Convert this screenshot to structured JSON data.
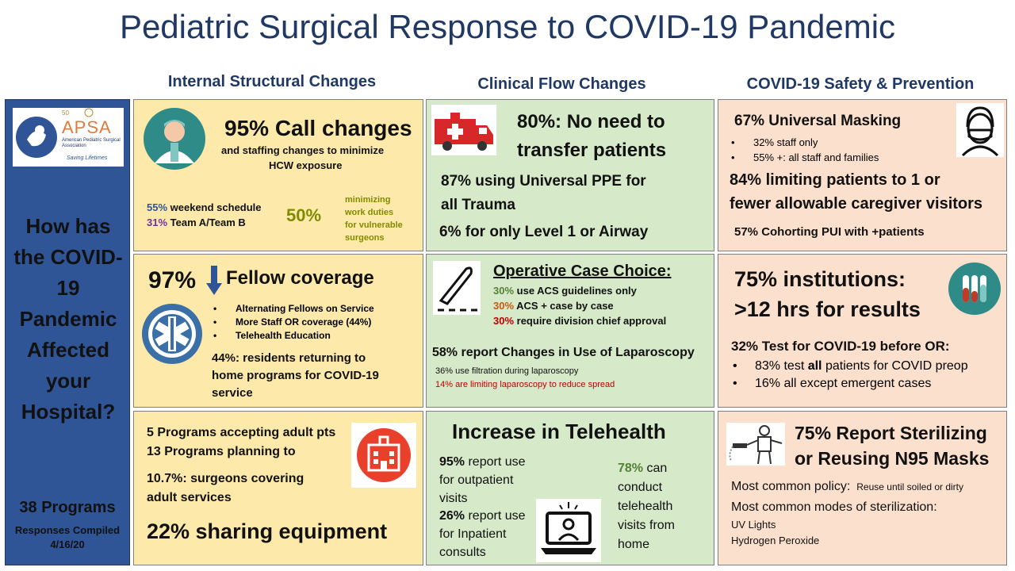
{
  "title": "Pediatric Surgical Response to COVID-19 Pandemic",
  "columns": {
    "internal": "Internal Structural Changes",
    "clinical": "Clinical Flow Changes",
    "safety": "COVID-19 Safety & Prevention"
  },
  "sidebar": {
    "logo_text": "APSA",
    "logo_years": "50",
    "logo_org": "American Pediatric Surgical Association",
    "logo_tagline": "Saving Lifetimes",
    "question": "How has the COVID-19 Pandemic Affected your Hospital?",
    "programs": "38 Programs",
    "responses": "Responses Compiled",
    "date": "4/16/20"
  },
  "p1": {
    "headline": "95% Call changes",
    "sub1": "and staffing changes to minimize",
    "sub2": "HCW exposure",
    "weekend_pct": "55%",
    "weekend_text": " weekend schedule",
    "teamab_pct": "31%",
    "teamab_text": " Team A/Team B",
    "duty_pct": "50%",
    "duty1": "minimizing",
    "duty2": "work duties",
    "duty3": "for vulnerable",
    "duty4": "surgeons"
  },
  "p2": {
    "pct": "97%",
    "headline": "Fellow coverage",
    "bullets": [
      "Alternating Fellows on Service",
      "More Staff OR coverage (44%)",
      "Telehealth Education"
    ],
    "res1": "44%: residents returning to",
    "res2": "home programs for COVID-19",
    "res3": "service"
  },
  "p3": {
    "line1": "5 Programs accepting adult pts",
    "line2": "13 Programs planning to",
    "line3": "10.7%: surgeons covering",
    "line4": "adult services",
    "headline": "22% sharing equipment"
  },
  "p4": {
    "head1": "80%: No need to",
    "head2": "transfer patients",
    "ppe1": "87% using Universal PPE for",
    "ppe2": "all Trauma",
    "level": "6% for only Level 1 or Airway"
  },
  "p5": {
    "headline": "Operative Case Choice:",
    "c1_pct": "30%",
    "c1_text": " use ACS guidelines only",
    "c2_pct": "30%",
    "c2_text": " ACS + case by case",
    "c3_pct": "30%",
    "c3_text": " require division chief approval",
    "lap": "58% report Changes in Use of Laparoscopy",
    "filt": "36% use filtration during laparoscopy",
    "limit": "14% are limiting laparoscopy to reduce spread"
  },
  "p6": {
    "headline": "Increase in Telehealth",
    "out_pct": "95%",
    "out1": " report use",
    "out2": "for outpatient",
    "out3": "visits",
    "in_pct": "26%",
    "in1": " report use",
    "in2": "for Inpatient",
    "in3": "consults",
    "home_pct": "78%",
    "home1": " can",
    "home2": "conduct",
    "home3": "telehealth",
    "home4": "visits from",
    "home5": "home"
  },
  "p7": {
    "headline": "67% Universal Masking",
    "b1": "32% staff only",
    "b2": "55% +: all staff and families",
    "vis1": "84% limiting patients to 1 or",
    "vis2": "fewer allowable caregiver visitors",
    "cohort": "57% Cohorting PUI with +patients"
  },
  "p8": {
    "head1": "75% institutions:",
    "head2": ">12 hrs for results",
    "test": "32% Test for COVID-19 before OR:",
    "b1_pre": "83% test ",
    "b1_bold": "all",
    "b1_post": " patients for COVID preop",
    "b2": "16% all except emergent cases"
  },
  "p9": {
    "head1": "75% Report Sterilizing",
    "head2": "or Reusing N95 Masks",
    "policy_label": "Most common policy:",
    "policy_value": "Reuse until soiled or dirty",
    "modes": "Most common modes of sterilization:",
    "m1": "UV Lights",
    "m2": "Hydrogen Peroxide"
  },
  "colors": {
    "navy": "#1f3864",
    "sidebar": "#2f5597",
    "yellow": "#fde9a9",
    "green": "#d6e9c8",
    "peach": "#fbe0cd",
    "purple": "#7030a0",
    "olive": "#7f6000",
    "red": "#c00000"
  }
}
